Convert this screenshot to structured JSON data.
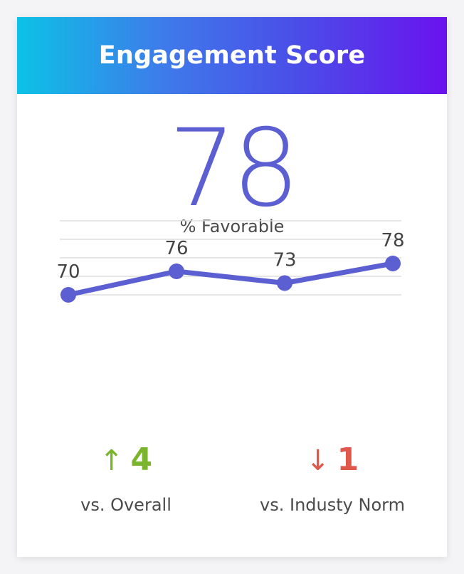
{
  "title": "Engagement Score",
  "score": {
    "value": "78",
    "caption": "% Favorable"
  },
  "chart_data": {
    "type": "line",
    "values": [
      70,
      76,
      73,
      78
    ],
    "data_labels": [
      "70",
      "76",
      "73",
      "78"
    ],
    "grid": true,
    "line_color": "#5b5fd1"
  },
  "comparisons": [
    {
      "arrow": "↑",
      "value": "4",
      "label": "vs. Overall",
      "color": "#7bb52e"
    },
    {
      "arrow": "↓",
      "value": "1",
      "label": "vs. Industy Norm",
      "color": "#e0574b"
    }
  ],
  "colors": {
    "accent": "#5b5fd1",
    "header_gradient_start": "#0cc2e6",
    "header_gradient_end": "#6a12ee"
  }
}
